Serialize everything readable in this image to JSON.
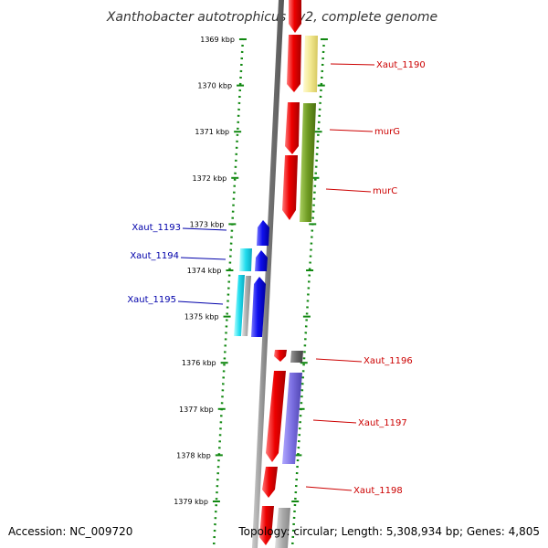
{
  "title": "Xanthobacter autotrophicus Py2, complete genome",
  "footer": {
    "accession": "Accession: NC_009720",
    "info": "Topology: circular; Length: 5,308,934 bp; Genes: 4,805"
  },
  "scale": {
    "unit": "kbp",
    "ticks": [
      "1369 kbp",
      "1370 kbp",
      "1371 kbp",
      "1372 kbp",
      "1373 kbp",
      "1374 kbp",
      "1375 kbp",
      "1376 kbp",
      "1377 kbp",
      "1378 kbp",
      "1379 kbp"
    ]
  },
  "colors": {
    "forward_gene": "#ee0000",
    "reverse_gene": "#1a1aee",
    "forward_label": "#cc0000",
    "reverse_label": "#0000aa",
    "scale_dots": "#118811",
    "backbone": "#777777"
  },
  "labels": [
    {
      "text": "Xaut_1190",
      "strand": "forward"
    },
    {
      "text": "murG",
      "strand": "forward"
    },
    {
      "text": "murC",
      "strand": "forward"
    },
    {
      "text": "Xaut_1193",
      "strand": "reverse"
    },
    {
      "text": "Xaut_1194",
      "strand": "reverse"
    },
    {
      "text": "Xaut_1195",
      "strand": "reverse"
    },
    {
      "text": "Xaut_1196",
      "strand": "forward"
    },
    {
      "text": "Xaut_1197",
      "strand": "forward"
    },
    {
      "text": "Xaut_1198",
      "strand": "forward"
    }
  ]
}
